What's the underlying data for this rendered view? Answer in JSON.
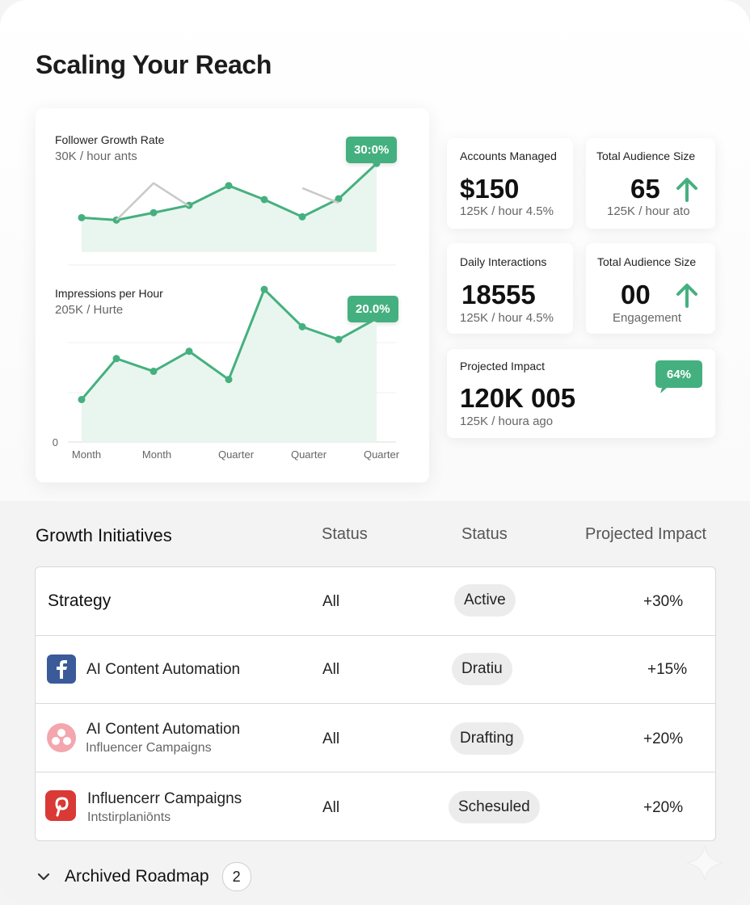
{
  "page": {
    "title": "Scaling Your Reach"
  },
  "charts": {
    "follower": {
      "title": "Follower Growth Rate",
      "subtitle": "30K / hour ants",
      "badge": "30:0%"
    },
    "impressions": {
      "title": "Impressions per Hour",
      "subtitle": "205K / Hurte",
      "badge": "20.0%",
      "y_zero": "0"
    },
    "x_labels": [
      "Month",
      "Month",
      "Quarter",
      "Quarter",
      "Quarter"
    ]
  },
  "chart_data": [
    {
      "type": "line",
      "title": "Follower Growth Rate",
      "x": [
        1,
        2,
        3,
        4,
        5,
        6,
        7,
        8,
        9
      ],
      "series": [
        {
          "values": [
            44,
            41,
            50,
            59,
            83,
            66,
            45,
            67,
            110
          ]
        },
        {
          "values": [
            null,
            41,
            86,
            58,
            null,
            null,
            80,
            62,
            null
          ]
        }
      ],
      "ylim": [
        0,
        130
      ]
    },
    {
      "type": "line",
      "title": "Impressions per Hour",
      "x": [
        1,
        2,
        3,
        4,
        5,
        6,
        7,
        8,
        9
      ],
      "series": [
        {
          "values": [
            44,
            89,
            75,
            97,
            66,
            165,
            124,
            110,
            133
          ]
        }
      ],
      "ylim": [
        0,
        190
      ]
    }
  ],
  "stats": [
    {
      "label": "Accounts Managed",
      "value": "$150",
      "sub": "125K / hour 4.5%"
    },
    {
      "label": "Total Audience Size",
      "value": "65",
      "sub": "125K / hour ato",
      "arrow": "arrow-up-icon"
    },
    {
      "label": "Daily Interactions",
      "value": "18555",
      "sub": "125K / hour 4.5%"
    },
    {
      "label": "Total Audience Size",
      "value": "00",
      "sub": "Engagement",
      "arrow": "arrow-up-icon"
    },
    {
      "label": "Projected Impact",
      "value": "120K 005",
      "sub": "125K / houra ago",
      "badge": "64%"
    }
  ],
  "table": {
    "headers": [
      "Growth Initiatives",
      "Status",
      "Status",
      "Projected Impact"
    ],
    "rows": [
      {
        "name": "Strategy",
        "sub": "",
        "icon": "",
        "col2": "All",
        "status": "Active",
        "impact": "+30%"
      },
      {
        "name": "AI Content Automation",
        "sub": "",
        "icon": "facebook-icon",
        "col2": "All",
        "status": "Dratiu",
        "impact": "+15%"
      },
      {
        "name": "AI Content Automation",
        "sub": "Influencer Campaigns",
        "icon": "asana-icon",
        "col2": "All",
        "status": "Drafting",
        "impact": "+20%"
      },
      {
        "name": "Influencerr Campaigns",
        "sub": "Intstirplaniōnts",
        "icon": "pinterest-icon",
        "col2": "All",
        "status": "Schesuled",
        "impact": "+20%"
      }
    ]
  },
  "archive": {
    "label": "Archived Roadmap",
    "count": "2"
  },
  "colors": {
    "accent": "#45b07f",
    "area": "#e9f6ef",
    "ghost_line": "#c9c9c9"
  }
}
